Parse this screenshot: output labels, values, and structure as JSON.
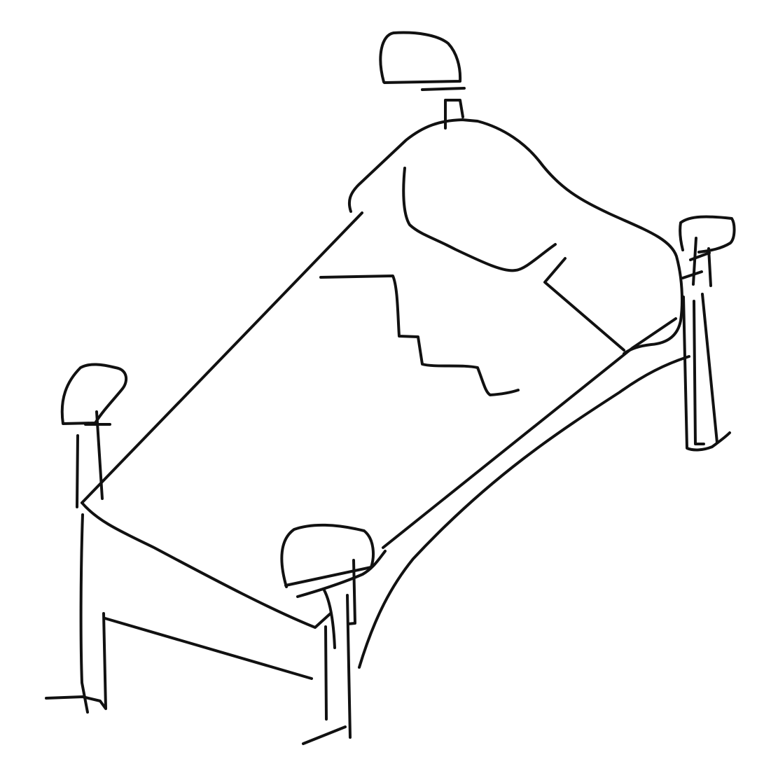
{
  "drawing": {
    "subject": "bed",
    "stroke_color": "#111111",
    "background_color": "#ffffff"
  }
}
